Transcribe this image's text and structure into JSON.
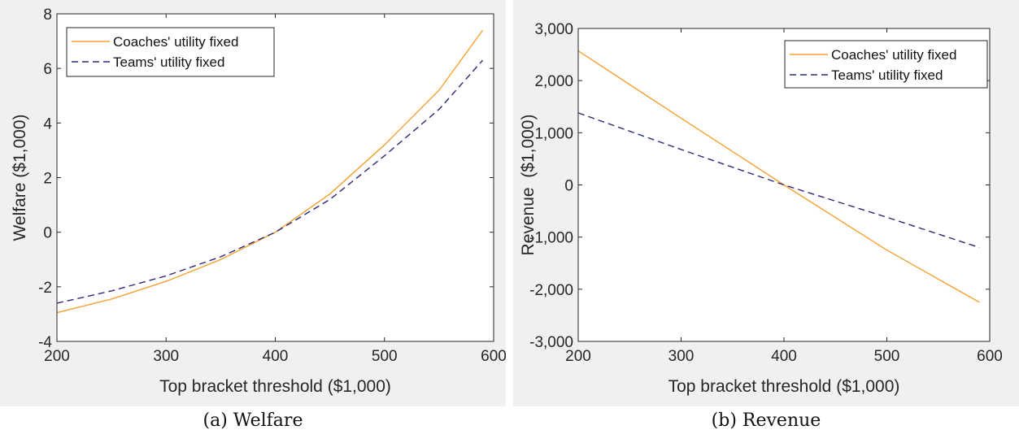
{
  "colors": {
    "figure_bg": "#f0f0f0",
    "axes_bg": "#ffffff",
    "coaches": "#f5a030",
    "teams": "#2a2a78"
  },
  "captions": {
    "a": "(a) Welfare",
    "b": "(b) Revenue"
  },
  "chart_data": [
    {
      "type": "line",
      "xlabel": "Top bracket threshold ($1,000)",
      "ylabel": "Welfare ($1,000)",
      "xlim": [
        200,
        600
      ],
      "ylim": [
        -4,
        8
      ],
      "xticks": [
        200,
        300,
        400,
        500,
        600
      ],
      "xtick_labels": [
        "200",
        "300",
        "400",
        "500",
        "600"
      ],
      "yticks": [
        -4,
        -2,
        0,
        2,
        4,
        6,
        8
      ],
      "ytick_labels": [
        "-4",
        "-2",
        "0",
        "2",
        "4",
        "6",
        "8"
      ],
      "legend_position": "top-left",
      "grid": false,
      "x": [
        200,
        250,
        300,
        350,
        400,
        450,
        500,
        550,
        590
      ],
      "series": [
        {
          "name": "Coaches' utility fixed",
          "style": "solid",
          "values": [
            -2.95,
            -2.45,
            -1.8,
            -1.0,
            0.0,
            1.4,
            3.2,
            5.2,
            7.4
          ]
        },
        {
          "name": "Teams' utility fixed",
          "style": "dashed",
          "values": [
            -2.6,
            -2.15,
            -1.6,
            -0.9,
            0.0,
            1.2,
            2.8,
            4.5,
            6.3
          ]
        }
      ]
    },
    {
      "type": "line",
      "xlabel": "Top bracket threshold ($1,000)",
      "ylabel": "Revenue  ($1,000)",
      "xlim": [
        200,
        600
      ],
      "ylim": [
        -3000,
        3000
      ],
      "xticks": [
        200,
        300,
        400,
        500,
        600
      ],
      "xtick_labels": [
        "200",
        "300",
        "400",
        "500",
        "600"
      ],
      "yticks": [
        -3000,
        -2000,
        -1000,
        0,
        1000,
        2000,
        3000
      ],
      "ytick_labels": [
        "-3,000",
        "-2,000",
        "-1,000",
        "0",
        "1,000",
        "2,000",
        "3,000"
      ],
      "legend_position": "top-right",
      "grid": false,
      "x": [
        200,
        300,
        400,
        500,
        590
      ],
      "series": [
        {
          "name": "Coaches' utility fixed",
          "style": "solid",
          "values": [
            2570,
            1280,
            0,
            -1250,
            -2250
          ]
        },
        {
          "name": "Teams' utility fixed",
          "style": "dashed",
          "values": [
            1380,
            680,
            0,
            -620,
            -1200
          ]
        }
      ]
    }
  ]
}
